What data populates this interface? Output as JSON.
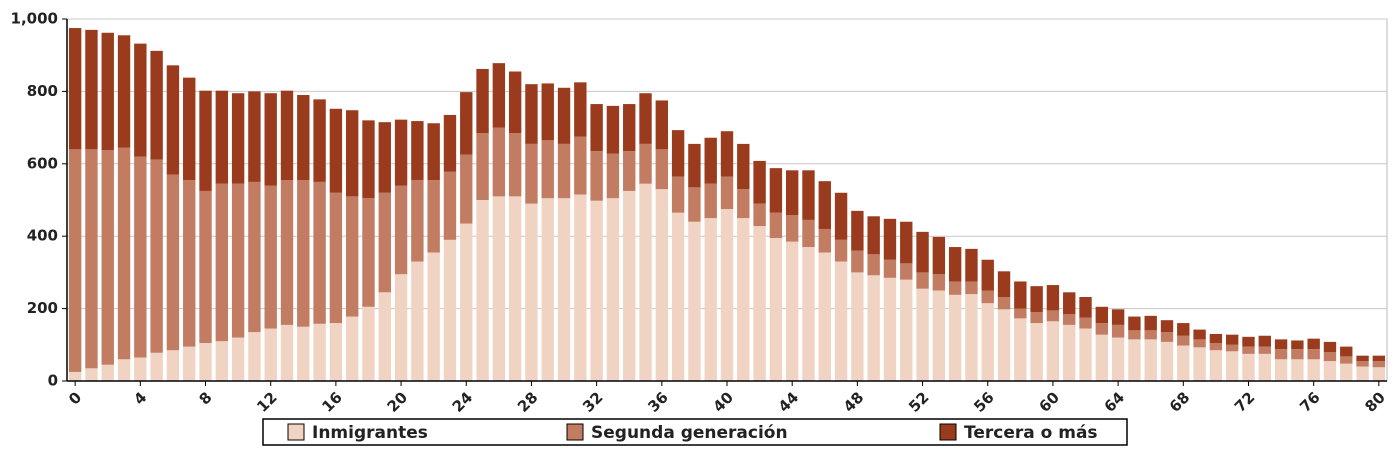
{
  "chart_data": {
    "type": "stacked_bar",
    "categories": [
      "0",
      null,
      null,
      null,
      "4",
      null,
      null,
      null,
      "8",
      null,
      null,
      null,
      "12",
      null,
      null,
      null,
      "16",
      null,
      null,
      null,
      "20",
      null,
      null,
      null,
      "24",
      null,
      null,
      null,
      "28",
      null,
      null,
      null,
      "32",
      null,
      null,
      null,
      "36",
      null,
      null,
      null,
      "40",
      null,
      null,
      null,
      "44",
      null,
      null,
      null,
      "48",
      null,
      null,
      null,
      "52",
      null,
      null,
      null,
      "56",
      null,
      null,
      null,
      "60",
      null,
      null,
      null,
      "64",
      null,
      null,
      null,
      "68",
      null,
      null,
      null,
      "72",
      null,
      null,
      null,
      "76",
      null,
      null,
      null,
      "80"
    ],
    "series": [
      {
        "name": "Inmigrantes",
        "color": "#f1d3c4",
        "values": [
          25,
          35,
          45,
          60,
          65,
          78,
          85,
          95,
          105,
          110,
          120,
          135,
          145,
          155,
          150,
          158,
          160,
          178,
          205,
          245,
          295,
          330,
          355,
          390,
          435,
          500,
          510,
          510,
          490,
          505,
          505,
          515,
          498,
          505,
          525,
          545,
          530,
          465,
          440,
          450,
          475,
          450,
          428,
          395,
          385,
          370,
          355,
          330,
          300,
          292,
          285,
          280,
          255,
          250,
          238,
          240,
          215,
          198,
          173,
          160,
          165,
          155,
          145,
          128,
          120,
          115,
          115,
          108,
          98,
          93,
          85,
          82,
          75,
          75,
          60,
          60,
          60,
          55,
          48,
          40,
          38
        ]
      },
      {
        "name": "Segunda generación",
        "color": "#c17c62",
        "values": [
          615,
          605,
          593,
          585,
          555,
          534,
          485,
          460,
          420,
          435,
          425,
          415,
          395,
          400,
          405,
          392,
          360,
          332,
          300,
          275,
          245,
          225,
          200,
          188,
          190,
          185,
          190,
          175,
          165,
          160,
          150,
          160,
          137,
          123,
          110,
          110,
          110,
          100,
          95,
          95,
          90,
          80,
          62,
          70,
          73,
          75,
          65,
          60,
          60,
          58,
          50,
          45,
          45,
          45,
          37,
          35,
          35,
          34,
          27,
          30,
          30,
          30,
          30,
          32,
          35,
          25,
          25,
          27,
          27,
          22,
          20,
          18,
          20,
          20,
          28,
          28,
          28,
          25,
          20,
          15,
          17
        ]
      },
      {
        "name": "Tercera o más",
        "color": "#9b3b1e",
        "values": [
          335,
          330,
          324,
          310,
          312,
          300,
          302,
          283,
          277,
          257,
          250,
          250,
          255,
          247,
          235,
          228,
          232,
          238,
          215,
          195,
          182,
          163,
          157,
          157,
          173,
          177,
          178,
          170,
          165,
          157,
          155,
          150,
          130,
          132,
          130,
          140,
          135,
          128,
          120,
          127,
          125,
          125,
          118,
          123,
          124,
          137,
          132,
          130,
          110,
          105,
          113,
          115,
          112,
          103,
          95,
          90,
          85,
          71,
          75,
          72,
          70,
          60,
          57,
          45,
          43,
          38,
          40,
          33,
          35,
          27,
          25,
          28,
          27,
          30,
          27,
          24,
          29,
          28,
          27,
          15,
          15
        ]
      }
    ],
    "ylim": [
      0,
      1000
    ],
    "yticks": [
      0,
      200,
      400,
      600,
      800,
      {
        "value": 1000,
        "label": "1,000"
      }
    ],
    "grid": true
  }
}
